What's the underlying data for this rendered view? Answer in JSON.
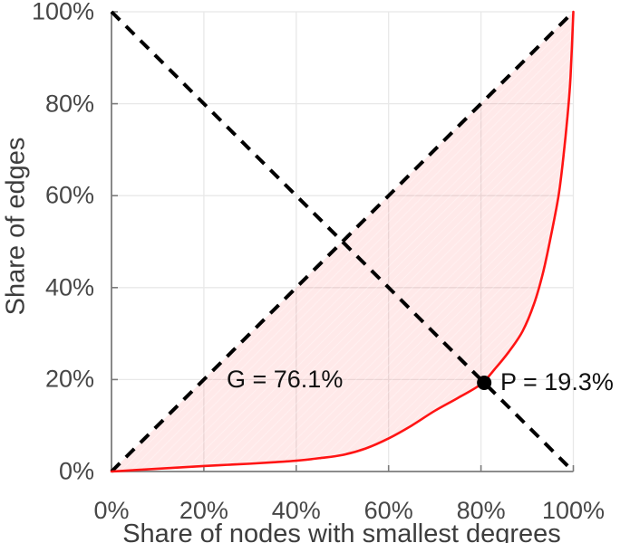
{
  "figure": {
    "background": "#ffffff"
  },
  "chart_data": {
    "type": "line",
    "title": "",
    "xlabel": "Share of nodes with smallest degrees",
    "ylabel": "Share of edges",
    "xlim": [
      0,
      100
    ],
    "ylim": [
      0,
      100
    ],
    "grid": true,
    "legend": "none",
    "x_ticks": [
      {
        "value": 0,
        "label": "0%"
      },
      {
        "value": 20,
        "label": "20%"
      },
      {
        "value": 40,
        "label": "40%"
      },
      {
        "value": 60,
        "label": "60%"
      },
      {
        "value": 80,
        "label": "80%"
      },
      {
        "value": 100,
        "label": "100%"
      }
    ],
    "y_ticks": [
      {
        "value": 0,
        "label": "0%"
      },
      {
        "value": 20,
        "label": "20%"
      },
      {
        "value": 40,
        "label": "40%"
      },
      {
        "value": 60,
        "label": "60%"
      },
      {
        "value": 80,
        "label": "80%"
      },
      {
        "value": 100,
        "label": "100%"
      }
    ],
    "series": [
      {
        "name": "lorenz-curve",
        "color": "#ff1414",
        "style": "solid",
        "width": 2.6,
        "points": [
          [
            0,
            0
          ],
          [
            5,
            0.3
          ],
          [
            10,
            0.6
          ],
          [
            15,
            0.9
          ],
          [
            20,
            1.2
          ],
          [
            25,
            1.45
          ],
          [
            30,
            1.7
          ],
          [
            35,
            2.0
          ],
          [
            40,
            2.35
          ],
          [
            45,
            2.9
          ],
          [
            50,
            3.6
          ],
          [
            55,
            5.0
          ],
          [
            60,
            7.2
          ],
          [
            65,
            10.0
          ],
          [
            70,
            13.2
          ],
          [
            75,
            16.0
          ],
          [
            80,
            19.0
          ],
          [
            83,
            22.3
          ],
          [
            86,
            26.0
          ],
          [
            89,
            30.5
          ],
          [
            91.5,
            36.5
          ],
          [
            93.5,
            43.5
          ],
          [
            95.2,
            51.5
          ],
          [
            96.8,
            60.0
          ],
          [
            97.8,
            68.0
          ],
          [
            98.8,
            78.0
          ],
          [
            99.4,
            86.0
          ],
          [
            100,
            100
          ]
        ]
      },
      {
        "name": "equality-line",
        "color": "#000000",
        "style": "dashed",
        "width": 4,
        "points": [
          [
            0,
            0
          ],
          [
            100,
            100
          ]
        ]
      },
      {
        "name": "anti-diagonal",
        "color": "#000000",
        "style": "dashed",
        "width": 4,
        "points": [
          [
            0,
            100
          ],
          [
            100,
            0
          ]
        ]
      }
    ],
    "shaded_region": {
      "name": "gini-area",
      "between": [
        "equality-line",
        "lorenz-curve"
      ],
      "fill": "rgba(255,0,0,0.085)"
    },
    "point": {
      "name": "pareto-intersection-point",
      "x": 80.7,
      "y": 19.3,
      "radius": 8,
      "color": "#000000"
    },
    "annotations": [
      {
        "name": "gini-label",
        "text": "G = 76.1%",
        "value": 76.1
      },
      {
        "name": "pareto-label",
        "text": "P = 19.3%",
        "value": 19.3
      }
    ],
    "colors": {
      "grid": "#e8e8e8",
      "axis": "#7c7c7c",
      "tick_text": "#474747",
      "curve": "#ff1414",
      "fill": "rgba(255,0,0,0.085)",
      "dashed": "#000000",
      "point": "#000000"
    }
  }
}
